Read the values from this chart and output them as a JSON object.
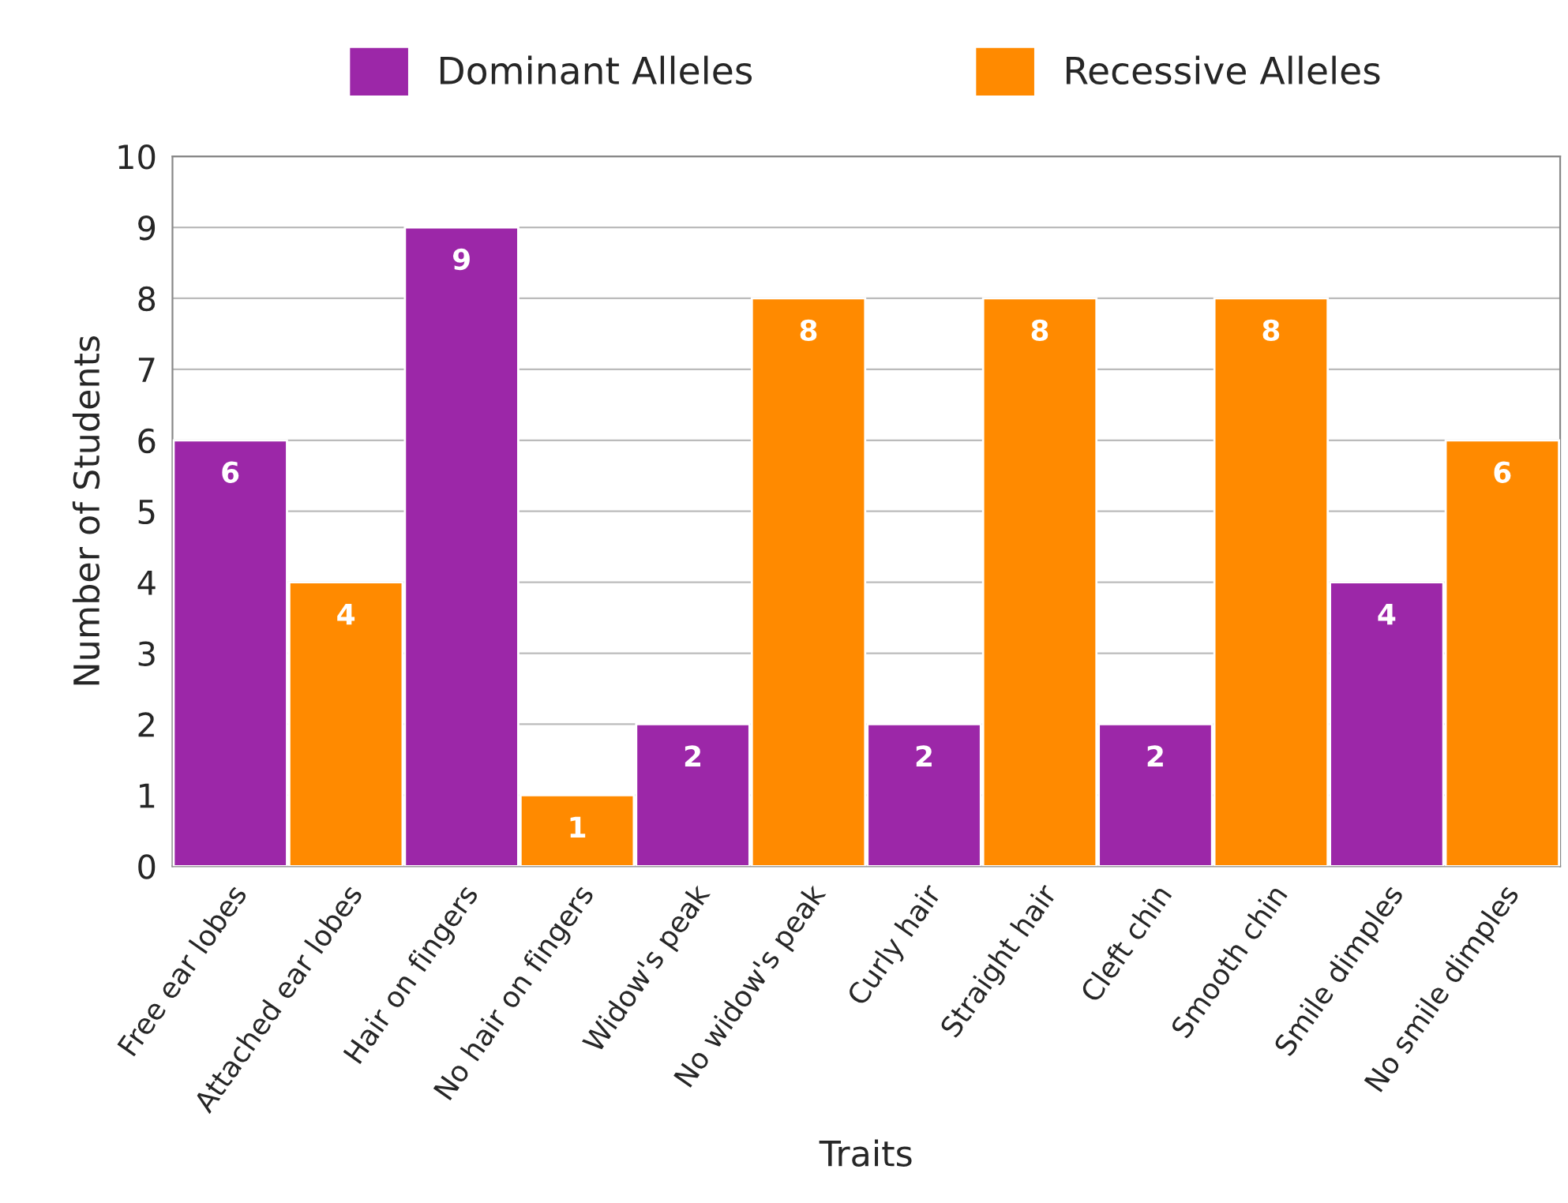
{
  "chart_data": {
    "type": "bar",
    "xlabel": "Traits",
    "ylabel": "Number of Students",
    "categories": [
      "Free ear lobes",
      "Attached ear lobes",
      "Hair on fingers",
      "No hair on fingers",
      "Widow's peak",
      "No widow's peak",
      "Curly hair",
      "Straight hair",
      "Cleft chin",
      "Smooth chin",
      "Smile dimples",
      "No smile dimples"
    ],
    "series": [
      {
        "name": "Dominant Alleles",
        "color": "#9c27a8",
        "values": [
          6,
          null,
          9,
          null,
          2,
          null,
          2,
          null,
          2,
          null,
          4,
          null
        ]
      },
      {
        "name": "Recessive Alleles",
        "color": "#ff8a00",
        "values": [
          null,
          4,
          null,
          1,
          null,
          8,
          null,
          8,
          null,
          8,
          null,
          6
        ]
      }
    ],
    "ylim": [
      0,
      10
    ],
    "yticks": [
      0,
      1,
      2,
      3,
      4,
      5,
      6,
      7,
      8,
      9,
      10
    ],
    "grid": "y",
    "legend": "top",
    "data_labels": true
  }
}
